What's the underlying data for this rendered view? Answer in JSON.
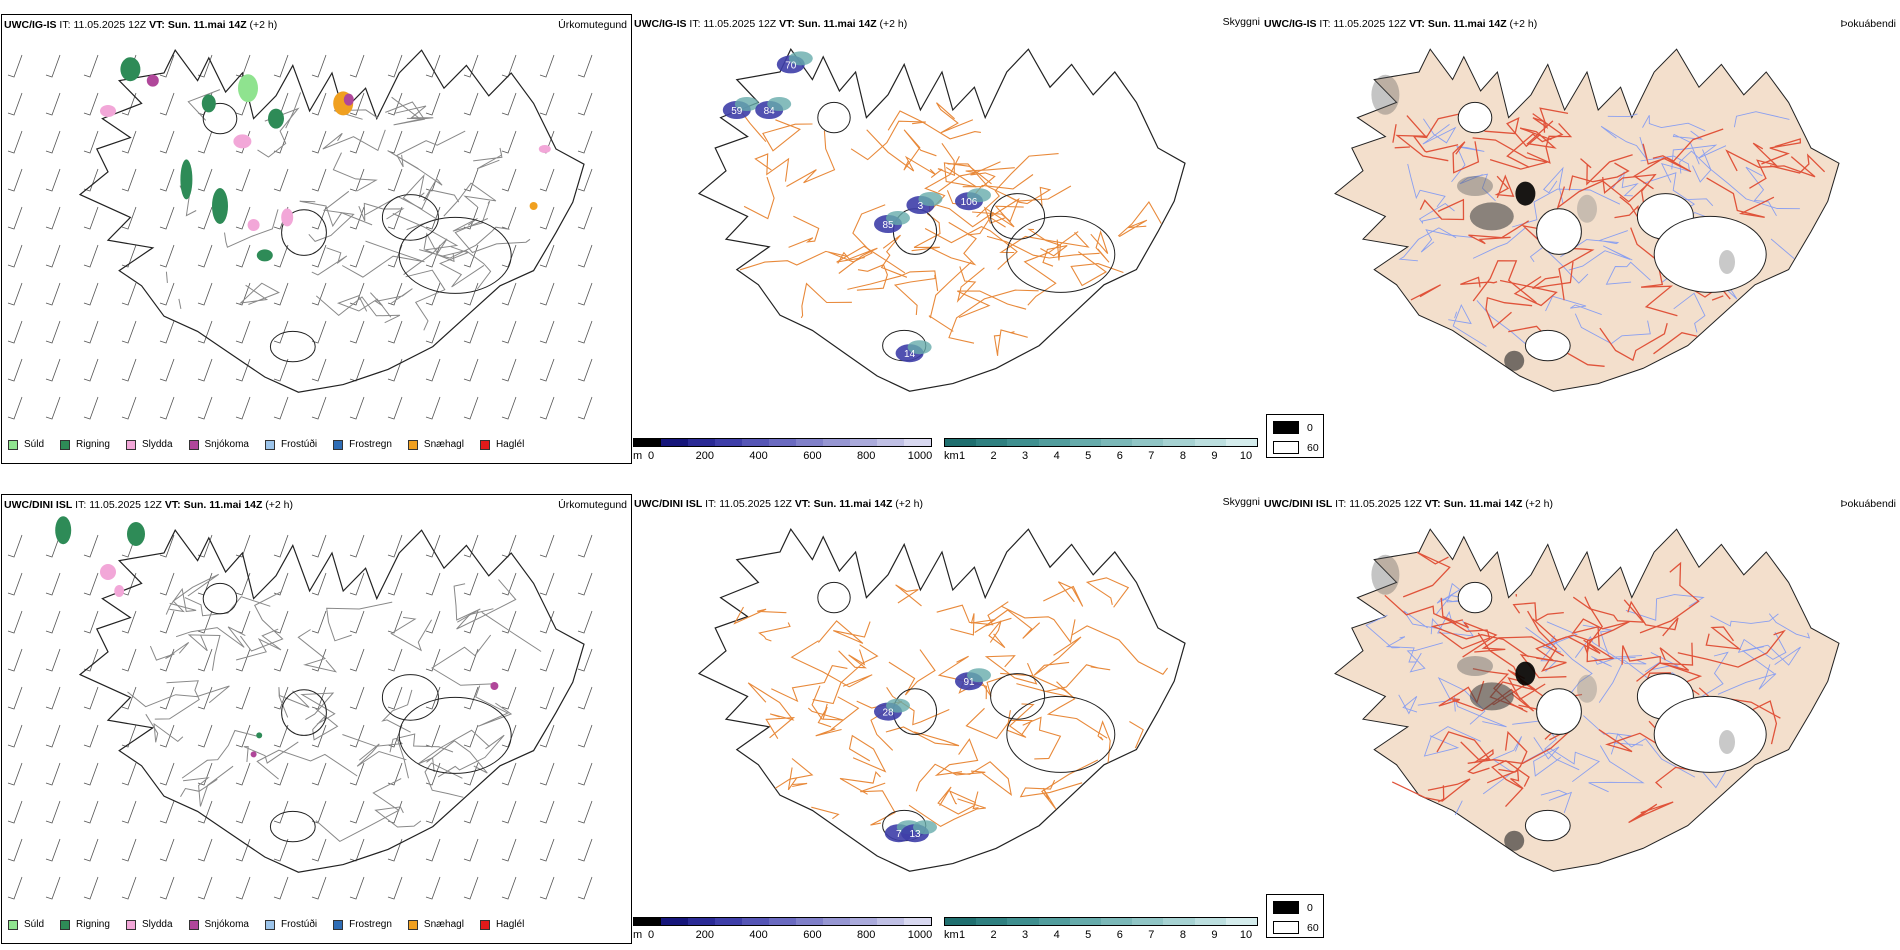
{
  "rows": [
    {
      "model": "UWC/IG-IS",
      "init_label": "IT:",
      "init_time": "11.05.2025 12Z",
      "valid_label": "VT:",
      "valid_time": "Sun. 11.mai 14Z",
      "lead": "(+2 h)",
      "precip_title": "Úrkomutegund",
      "vis_title": "Skyggni",
      "cloud_title": "Þokuábendi",
      "vis_labels": [
        "70",
        "59",
        "84",
        "3",
        "85",
        "106",
        "14"
      ]
    },
    {
      "model": "UWC/DINI ISL",
      "init_label": "IT:",
      "init_time": "11.05.2025 12Z",
      "valid_label": "VT:",
      "valid_time": "Sun. 11.mai 14Z",
      "lead": "(+2 h)",
      "precip_title": "Úrkomutegund",
      "vis_title": "Skyggni",
      "cloud_title": "Þokuábendi",
      "vis_labels": [
        "28",
        "91",
        "7",
        "13"
      ]
    }
  ],
  "precip_legend": [
    {
      "label": "Súld",
      "color": "#8fe38f"
    },
    {
      "label": "Rigning",
      "color": "#2e8b57"
    },
    {
      "label": "Slydda",
      "color": "#f2a7d8"
    },
    {
      "label": "Snjókoma",
      "color": "#b0479a"
    },
    {
      "label": "Frostúði",
      "color": "#9cc4ea"
    },
    {
      "label": "Frostregn",
      "color": "#2f6db5"
    },
    {
      "label": "Snæhagl",
      "color": "#f0a020"
    },
    {
      "label": "Haglél",
      "color": "#e01a1a"
    }
  ],
  "ceiling_bar": {
    "unit": "m",
    "ticks": [
      "0",
      "200",
      "400",
      "600",
      "800",
      "1000"
    ],
    "colors": [
      "#000000",
      "#15157a",
      "#2a2a95",
      "#3e3ea8",
      "#5555b5",
      "#6a6ac0",
      "#8080c9",
      "#9696d2",
      "#aaaadb",
      "#c0c0e5",
      "#d8d8f0"
    ]
  },
  "visibility_bar": {
    "unit": "km",
    "ticks": [
      "1",
      "2",
      "3",
      "4",
      "5",
      "6",
      "7",
      "8",
      "9",
      "10"
    ],
    "colors": [
      "#1f6f6f",
      "#2f8080",
      "#3f8f8f",
      "#529d9d",
      "#66abab",
      "#7bb8b8",
      "#90c5c5",
      "#a6d2d2",
      "#bcdfdf",
      "#d4ecec"
    ]
  },
  "fog_key": [
    {
      "label": "0",
      "color": "#000000"
    },
    {
      "label": "60",
      "color": "#ffffff"
    }
  ],
  "colors": {
    "land_fill": "#f3dfcc",
    "roads_orange": "#e8893a",
    "roads_red": "#e0533a",
    "rivers": "#8a9ff0",
    "glacier": "#ffffff"
  }
}
